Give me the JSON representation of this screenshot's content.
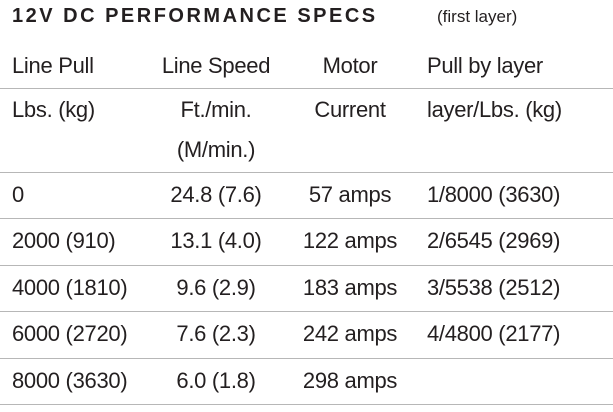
{
  "title": "12V DC PERFORMANCE SPECS",
  "subtitle": "(first layer)",
  "table": {
    "header_rows": [
      [
        "Line Pull",
        "Line Speed",
        "Motor",
        "Pull by layer"
      ],
      [
        "Lbs. (kg)",
        "Ft./min. (M/min.)",
        "Current",
        "layer/Lbs. (kg)"
      ]
    ],
    "rows": [
      [
        "0",
        "24.8 (7.6)",
        "57 amps",
        "1/8000 (3630)"
      ],
      [
        "2000 (910)",
        "13.1 (4.0)",
        "122 amps",
        "2/6545 (2969)"
      ],
      [
        "4000 (1810)",
        "9.6 (2.9)",
        "183 amps",
        "3/5538 (2512)"
      ],
      [
        "6000 (2720)",
        "7.6 (2.3)",
        "242 amps",
        "4/4800 (2177)"
      ],
      [
        "8000 (3630)",
        "6.0 (1.8)",
        "298 amps"
      ]
    ]
  }
}
